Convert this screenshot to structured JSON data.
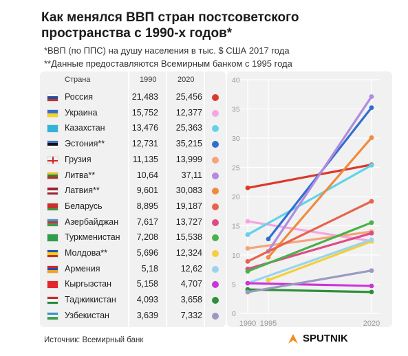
{
  "title": {
    "line1": "Как менялся ВВП стран постсоветского",
    "line2": "пространства с 1990-х годов*"
  },
  "notes": {
    "note1": "*ВВП (по ППС) на душу населения в тыс. $ США 2017 года",
    "note2": "**Данные предоставляются Всемирным банком с 1995 года"
  },
  "table": {
    "headers": {
      "country": "Страна",
      "y1990": "1990",
      "y2020": "2020"
    },
    "rows": [
      {
        "name": "Россия",
        "v1990": "21,483",
        "v2020": "25,456",
        "color": "#d93a2b",
        "flag": [
          "#ffffff",
          "#1c4fa8",
          "#d52b1e"
        ]
      },
      {
        "name": "Украина",
        "v1990": "15,752",
        "v2020": "12,377",
        "color": "#f5a6e0",
        "flag": [
          "#2f6fd6",
          "#f7d417"
        ]
      },
      {
        "name": "Казахстан",
        "v1990": "13,476",
        "v2020": "25,363",
        "color": "#5fd3ea",
        "flag": [
          "#32b4d8"
        ]
      },
      {
        "name": "Эстония**",
        "v1990": "12,731",
        "v2020": "35,215",
        "color": "#2f6fd0",
        "flag": [
          "#3a76c9",
          "#111111",
          "#ffffff"
        ]
      },
      {
        "name": "Грузия",
        "v1990": "11,135",
        "v2020": "13,999",
        "color": "#f4a57a",
        "flag": [
          "#ffffff"
        ]
      },
      {
        "name": "Литва**",
        "v1990": "10,64",
        "v2020": "37,11",
        "color": "#b28be0",
        "flag": [
          "#f2c21a",
          "#1f8a3b",
          "#c4232b"
        ]
      },
      {
        "name": "Латвия**",
        "v1990": "9,601",
        "v2020": "30,083",
        "color": "#f08a3c",
        "flag": [
          "#9b2333",
          "#ffffff",
          "#9b2333"
        ]
      },
      {
        "name": "Беларусь",
        "v1990": "8,895",
        "v2020": "19,187",
        "color": "#e8624f",
        "flag": [
          "#c9302c",
          "#c9302c",
          "#3c9a45"
        ]
      },
      {
        "name": "Азербайджан",
        "v1990": "7,617",
        "v2020": "13,727",
        "color": "#e04a86",
        "flag": [
          "#2aa0d8",
          "#e2273a",
          "#3aa04a"
        ]
      },
      {
        "name": "Туркменистан",
        "v1990": "7,208",
        "v2020": "15,538",
        "color": "#47b24c",
        "flag": [
          "#2e9e4a"
        ]
      },
      {
        "name": "Молдова**",
        "v1990": "5,696",
        "v2020": "12,324",
        "color": "#f4cf3a",
        "flag": [
          "#1f4fb0",
          "#f2cf1a",
          "#d42b2b"
        ]
      },
      {
        "name": "Армения",
        "v1990": "5,18",
        "v2020": "12,62",
        "color": "#9ad4ee",
        "flag": [
          "#d6262b",
          "#1e4fb2",
          "#f2a41b"
        ]
      },
      {
        "name": "Кыргызстан",
        "v1990": "5,158",
        "v2020": "4,707",
        "color": "#c836d9",
        "flag": [
          "#e3262b"
        ]
      },
      {
        "name": "Таджикистан",
        "v1990": "4,093",
        "v2020": "3,658",
        "color": "#2f8f3a",
        "flag": [
          "#cc2b2b",
          "#ffffff",
          "#1f8a3b"
        ]
      },
      {
        "name": "Узбекистан",
        "v1990": "3,639",
        "v2020": "7,332",
        "color": "#9a9ac2",
        "flag": [
          "#2c9ad1",
          "#ffffff",
          "#3fa24a"
        ]
      }
    ]
  },
  "chart_data": {
    "type": "line",
    "x": [
      1990,
      1995,
      2020
    ],
    "xticks": [
      "1990",
      "1995",
      "2020"
    ],
    "yticks": [
      "0",
      "5",
      "10",
      "15",
      "20",
      "25",
      "30",
      "35",
      "40"
    ],
    "ylim": [
      0,
      40
    ],
    "grid": true,
    "series": [
      {
        "name": "Россия",
        "color": "#d93a2b",
        "points": [
          [
            1990,
            21.483
          ],
          [
            2020,
            25.456
          ]
        ]
      },
      {
        "name": "Украина",
        "color": "#f5a6e0",
        "points": [
          [
            1990,
            15.752
          ],
          [
            2020,
            12.377
          ]
        ]
      },
      {
        "name": "Казахстан",
        "color": "#5fd3ea",
        "points": [
          [
            1990,
            13.476
          ],
          [
            2020,
            25.363
          ]
        ]
      },
      {
        "name": "Эстония**",
        "color": "#2f6fd0",
        "points": [
          [
            1995,
            12.731
          ],
          [
            2020,
            35.215
          ]
        ]
      },
      {
        "name": "Грузия",
        "color": "#f4a57a",
        "points": [
          [
            1990,
            11.135
          ],
          [
            2020,
            13.999
          ]
        ]
      },
      {
        "name": "Литва**",
        "color": "#b28be0",
        "points": [
          [
            1995,
            10.64
          ],
          [
            2020,
            37.11
          ]
        ]
      },
      {
        "name": "Латвия**",
        "color": "#f08a3c",
        "points": [
          [
            1995,
            9.601
          ],
          [
            2020,
            30.083
          ]
        ]
      },
      {
        "name": "Беларусь",
        "color": "#e8624f",
        "points": [
          [
            1990,
            8.895
          ],
          [
            2020,
            19.187
          ]
        ]
      },
      {
        "name": "Азербайджан",
        "color": "#e04a86",
        "points": [
          [
            1990,
            7.617
          ],
          [
            2020,
            13.727
          ]
        ]
      },
      {
        "name": "Туркменистан",
        "color": "#47b24c",
        "points": [
          [
            1990,
            7.208
          ],
          [
            2020,
            15.538
          ]
        ]
      },
      {
        "name": "Молдова**",
        "color": "#f4cf3a",
        "points": [
          [
            1995,
            5.696
          ],
          [
            2020,
            12.324
          ]
        ]
      },
      {
        "name": "Армения",
        "color": "#9ad4ee",
        "points": [
          [
            1990,
            5.18
          ],
          [
            2020,
            12.62
          ]
        ]
      },
      {
        "name": "Кыргызстан",
        "color": "#c836d9",
        "points": [
          [
            1990,
            5.158
          ],
          [
            2020,
            4.707
          ]
        ]
      },
      {
        "name": "Таджикистан",
        "color": "#2f8f3a",
        "points": [
          [
            1990,
            4.093
          ],
          [
            2020,
            3.658
          ]
        ]
      },
      {
        "name": "Узбекистан",
        "color": "#9a9ac2",
        "points": [
          [
            1990,
            3.639
          ],
          [
            2020,
            7.332
          ]
        ]
      }
    ]
  },
  "footer": {
    "source": "Источник: Всемирный банк",
    "brand": "SPUTNIK"
  }
}
